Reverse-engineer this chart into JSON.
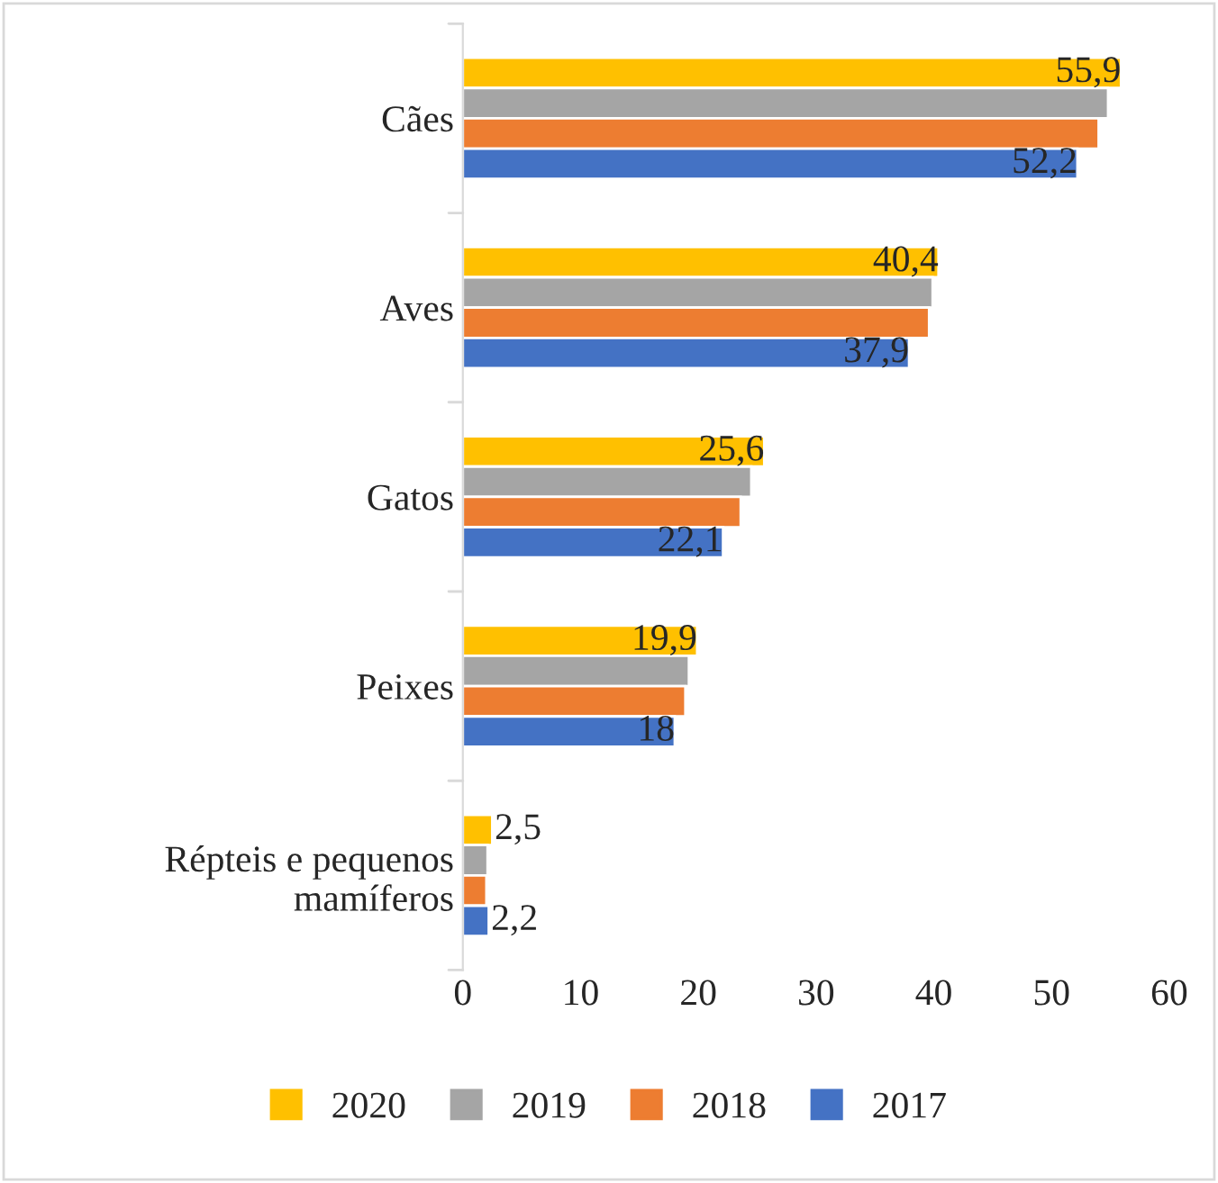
{
  "chart_data": {
    "type": "bar",
    "orientation": "horizontal",
    "categories": [
      "Cães",
      "Aves",
      "Gatos",
      "Peixes",
      "Répteis e pequenos mamíferos"
    ],
    "series": [
      {
        "name": "2020",
        "color": "#ffc000",
        "values": [
          55.9,
          40.4,
          25.6,
          19.9,
          2.5
        ],
        "value_labels": [
          "55,9",
          "40,4",
          "25,6",
          "19,9",
          "2,5"
        ]
      },
      {
        "name": "2019",
        "color": "#a5a5a5",
        "values": [
          54.8,
          39.9,
          24.5,
          19.2,
          2.1
        ]
      },
      {
        "name": "2018",
        "color": "#ed7d31",
        "values": [
          54.0,
          39.6,
          23.6,
          18.9,
          2.0
        ]
      },
      {
        "name": "2017",
        "color": "#4472c4",
        "values": [
          52.2,
          37.9,
          22.1,
          18,
          2.2
        ],
        "value_labels": [
          "52,2",
          "37,9",
          "22,1",
          "18",
          "2,2"
        ]
      }
    ],
    "xlim": [
      0,
      60
    ],
    "xticks": [
      0,
      10,
      20,
      30,
      40,
      50,
      60
    ],
    "grid": false,
    "legend": "bottom"
  }
}
